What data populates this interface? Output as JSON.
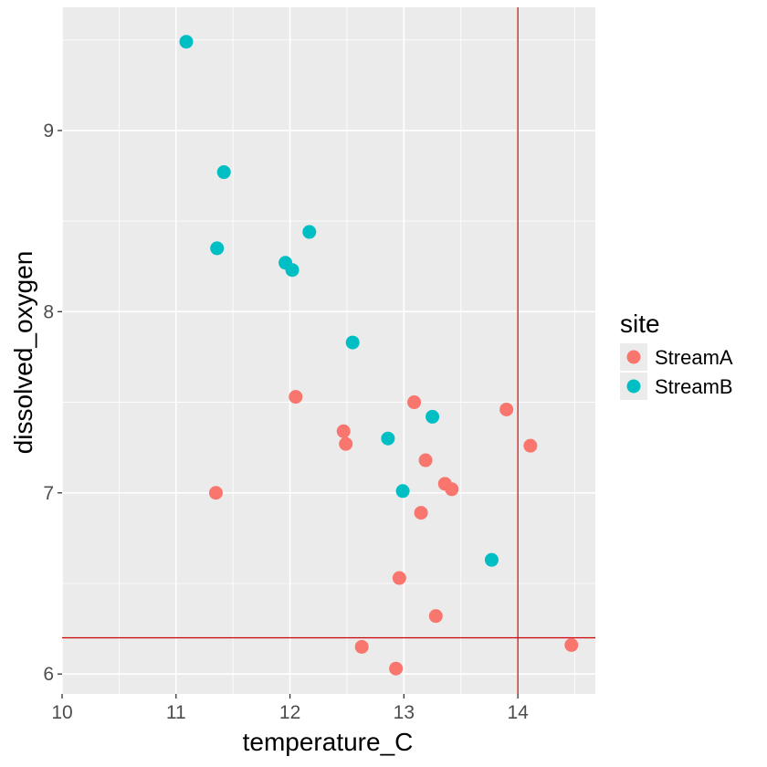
{
  "chart_data": {
    "type": "scatter",
    "xlabel": "temperature_C",
    "ylabel": "dissolved_oxygen",
    "xlim": [
      10,
      14.68
    ],
    "ylim": [
      5.89,
      9.68
    ],
    "x_ticks": [
      10,
      11,
      12,
      13,
      14
    ],
    "y_ticks": [
      6,
      7,
      8,
      9
    ],
    "grid": true,
    "legend": {
      "title": "site",
      "position": "right"
    },
    "reference_lines": {
      "vertical_x": 14.0,
      "horizontal_y": 6.2,
      "color": "#cc0000"
    },
    "series": [
      {
        "name": "StreamA",
        "color": "#F8766D",
        "points": [
          [
            11.35,
            7.0
          ],
          [
            12.05,
            7.53
          ],
          [
            12.47,
            7.34
          ],
          [
            12.49,
            7.27
          ],
          [
            12.63,
            6.15
          ],
          [
            12.93,
            6.03
          ],
          [
            12.96,
            6.53
          ],
          [
            13.09,
            7.5
          ],
          [
            13.15,
            6.89
          ],
          [
            13.19,
            7.18
          ],
          [
            13.28,
            6.32
          ],
          [
            13.36,
            7.05
          ],
          [
            13.42,
            7.02
          ],
          [
            13.9,
            7.46
          ],
          [
            14.11,
            7.26
          ],
          [
            14.47,
            6.16
          ]
        ]
      },
      {
        "name": "StreamB",
        "color": "#00BFC4",
        "points": [
          [
            11.09,
            9.49
          ],
          [
            11.36,
            8.35
          ],
          [
            11.42,
            8.77
          ],
          [
            11.96,
            8.27
          ],
          [
            12.02,
            8.23
          ],
          [
            12.17,
            8.44
          ],
          [
            12.55,
            7.83
          ],
          [
            12.86,
            7.3
          ],
          [
            12.99,
            7.01
          ],
          [
            13.25,
            7.42
          ],
          [
            13.77,
            6.63
          ]
        ]
      }
    ]
  }
}
